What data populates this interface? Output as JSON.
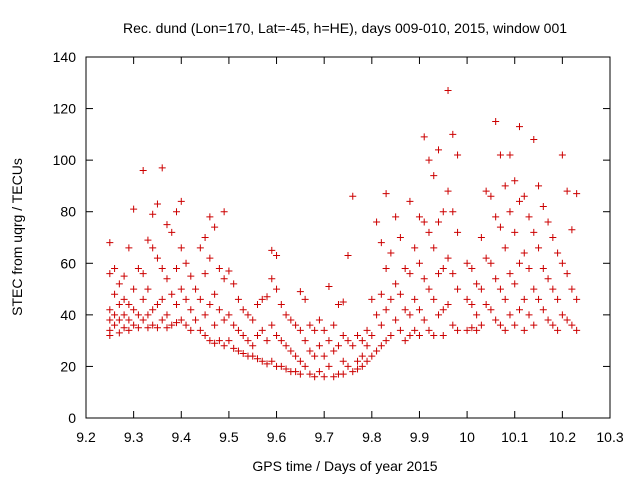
{
  "chart_data": {
    "type": "scatter",
    "title": "Rec. dund (Lon=170, Lat=-45, h=HE), days 009-010, 2015, window 001",
    "xlabel": "GPS time / Days of year 2015",
    "ylabel": "STEC from uqrg / TECUs",
    "xlim": [
      9.2,
      10.3
    ],
    "ylim": [
      0,
      140
    ],
    "xticks": [
      "9.2",
      "9.3",
      "9.4",
      "9.5",
      "9.6",
      "9.7",
      "9.8",
      "9.9",
      "10",
      "10.1",
      "10.2",
      "10.3"
    ],
    "yticks": [
      "0",
      "20",
      "40",
      "60",
      "80",
      "100",
      "120",
      "140"
    ],
    "grid": false,
    "marker": "+",
    "color": "#cc0000",
    "points": [
      [
        9.25,
        68
      ],
      [
        9.25,
        56
      ],
      [
        9.25,
        42
      ],
      [
        9.25,
        38
      ],
      [
        9.25,
        34
      ],
      [
        9.25,
        32
      ],
      [
        9.26,
        58
      ],
      [
        9.26,
        48
      ],
      [
        9.26,
        40
      ],
      [
        9.26,
        36
      ],
      [
        9.27,
        52
      ],
      [
        9.27,
        44
      ],
      [
        9.27,
        38
      ],
      [
        9.27,
        33
      ],
      [
        9.28,
        55
      ],
      [
        9.28,
        46
      ],
      [
        9.28,
        40
      ],
      [
        9.28,
        35
      ],
      [
        9.29,
        66
      ],
      [
        9.29,
        44
      ],
      [
        9.29,
        38
      ],
      [
        9.29,
        34
      ],
      [
        9.3,
        81
      ],
      [
        9.3,
        50
      ],
      [
        9.3,
        42
      ],
      [
        9.3,
        36
      ],
      [
        9.31,
        58
      ],
      [
        9.31,
        40
      ],
      [
        9.31,
        35
      ],
      [
        9.32,
        96
      ],
      [
        9.32,
        56
      ],
      [
        9.32,
        46
      ],
      [
        9.32,
        38
      ],
      [
        9.33,
        69
      ],
      [
        9.33,
        50
      ],
      [
        9.33,
        40
      ],
      [
        9.33,
        35
      ],
      [
        9.34,
        79
      ],
      [
        9.34,
        66
      ],
      [
        9.34,
        42
      ],
      [
        9.34,
        36
      ],
      [
        9.35,
        83
      ],
      [
        9.35,
        62
      ],
      [
        9.35,
        44
      ],
      [
        9.35,
        35
      ],
      [
        9.36,
        97
      ],
      [
        9.36,
        58
      ],
      [
        9.36,
        46
      ],
      [
        9.36,
        38
      ],
      [
        9.37,
        75
      ],
      [
        9.37,
        54
      ],
      [
        9.37,
        40
      ],
      [
        9.37,
        35
      ],
      [
        9.38,
        72
      ],
      [
        9.38,
        48
      ],
      [
        9.38,
        36
      ],
      [
        9.39,
        80
      ],
      [
        9.39,
        58
      ],
      [
        9.39,
        44
      ],
      [
        9.39,
        37
      ],
      [
        9.4,
        84
      ],
      [
        9.4,
        66
      ],
      [
        9.4,
        50
      ],
      [
        9.4,
        38
      ],
      [
        9.41,
        60
      ],
      [
        9.41,
        46
      ],
      [
        9.41,
        36
      ],
      [
        9.42,
        55
      ],
      [
        9.42,
        42
      ],
      [
        9.42,
        34
      ],
      [
        9.43,
        50
      ],
      [
        9.43,
        38
      ],
      [
        9.44,
        66
      ],
      [
        9.44,
        46
      ],
      [
        9.44,
        34
      ],
      [
        9.45,
        70
      ],
      [
        9.45,
        56
      ],
      [
        9.45,
        40
      ],
      [
        9.45,
        32
      ],
      [
        9.46,
        78
      ],
      [
        9.46,
        62
      ],
      [
        9.46,
        44
      ],
      [
        9.46,
        30
      ],
      [
        9.47,
        74
      ],
      [
        9.47,
        48
      ],
      [
        9.47,
        36
      ],
      [
        9.47,
        29
      ],
      [
        9.48,
        58
      ],
      [
        9.48,
        42
      ],
      [
        9.48,
        30
      ],
      [
        9.49,
        80
      ],
      [
        9.49,
        54
      ],
      [
        9.49,
        38
      ],
      [
        9.49,
        28
      ],
      [
        9.5,
        57
      ],
      [
        9.5,
        40
      ],
      [
        9.5,
        30
      ],
      [
        9.51,
        52
      ],
      [
        9.51,
        36
      ],
      [
        9.51,
        27
      ],
      [
        9.52,
        46
      ],
      [
        9.52,
        34
      ],
      [
        9.52,
        26
      ],
      [
        9.53,
        42
      ],
      [
        9.53,
        32
      ],
      [
        9.53,
        25
      ],
      [
        9.54,
        40
      ],
      [
        9.54,
        30
      ],
      [
        9.54,
        24
      ],
      [
        9.55,
        38
      ],
      [
        9.55,
        28
      ],
      [
        9.55,
        24
      ],
      [
        9.56,
        44
      ],
      [
        9.56,
        32
      ],
      [
        9.56,
        23
      ],
      [
        9.57,
        46
      ],
      [
        9.57,
        34
      ],
      [
        9.57,
        22
      ],
      [
        9.58,
        47
      ],
      [
        9.58,
        30
      ],
      [
        9.58,
        21
      ],
      [
        9.59,
        65
      ],
      [
        9.59,
        54
      ],
      [
        9.59,
        36
      ],
      [
        9.59,
        22
      ],
      [
        9.6,
        63
      ],
      [
        9.6,
        50
      ],
      [
        9.6,
        32
      ],
      [
        9.6,
        20
      ],
      [
        9.61,
        44
      ],
      [
        9.61,
        30
      ],
      [
        9.61,
        20
      ],
      [
        9.62,
        40
      ],
      [
        9.62,
        28
      ],
      [
        9.62,
        19
      ],
      [
        9.63,
        38
      ],
      [
        9.63,
        26
      ],
      [
        9.63,
        18
      ],
      [
        9.64,
        36
      ],
      [
        9.64,
        24
      ],
      [
        9.64,
        18
      ],
      [
        9.65,
        49
      ],
      [
        9.65,
        34
      ],
      [
        9.65,
        22
      ],
      [
        9.65,
        17
      ],
      [
        9.66,
        46
      ],
      [
        9.66,
        30
      ],
      [
        9.66,
        20
      ],
      [
        9.67,
        36
      ],
      [
        9.67,
        26
      ],
      [
        9.67,
        17
      ],
      [
        9.68,
        34
      ],
      [
        9.68,
        24
      ],
      [
        9.68,
        16
      ],
      [
        9.69,
        38
      ],
      [
        9.69,
        28
      ],
      [
        9.69,
        18
      ],
      [
        9.7,
        34
      ],
      [
        9.7,
        24
      ],
      [
        9.7,
        16
      ],
      [
        9.71,
        51
      ],
      [
        9.71,
        30
      ],
      [
        9.71,
        20
      ],
      [
        9.72,
        36
      ],
      [
        9.72,
        26
      ],
      [
        9.72,
        16
      ],
      [
        9.73,
        44
      ],
      [
        9.73,
        28
      ],
      [
        9.73,
        17
      ],
      [
        9.74,
        45
      ],
      [
        9.74,
        32
      ],
      [
        9.74,
        22
      ],
      [
        9.74,
        17
      ],
      [
        9.75,
        63
      ],
      [
        9.75,
        30
      ],
      [
        9.75,
        20
      ],
      [
        9.76,
        86
      ],
      [
        9.76,
        28
      ],
      [
        9.76,
        18
      ],
      [
        9.77,
        32
      ],
      [
        9.77,
        22
      ],
      [
        9.77,
        19
      ],
      [
        9.78,
        30
      ],
      [
        9.78,
        24
      ],
      [
        9.78,
        20
      ],
      [
        9.79,
        34
      ],
      [
        9.79,
        28
      ],
      [
        9.79,
        22
      ],
      [
        9.8,
        46
      ],
      [
        9.8,
        32
      ],
      [
        9.8,
        24
      ],
      [
        9.81,
        76
      ],
      [
        9.81,
        40
      ],
      [
        9.81,
        26
      ],
      [
        9.82,
        68
      ],
      [
        9.82,
        48
      ],
      [
        9.82,
        36
      ],
      [
        9.82,
        28
      ],
      [
        9.83,
        87
      ],
      [
        9.83,
        58
      ],
      [
        9.83,
        42
      ],
      [
        9.83,
        30
      ],
      [
        9.84,
        64
      ],
      [
        9.84,
        46
      ],
      [
        9.84,
        32
      ],
      [
        9.85,
        78
      ],
      [
        9.85,
        52
      ],
      [
        9.85,
        38
      ],
      [
        9.86,
        70
      ],
      [
        9.86,
        48
      ],
      [
        9.86,
        34
      ],
      [
        9.87,
        58
      ],
      [
        9.87,
        42
      ],
      [
        9.87,
        30
      ],
      [
        9.88,
        84
      ],
      [
        9.88,
        56
      ],
      [
        9.88,
        40
      ],
      [
        9.88,
        32
      ],
      [
        9.89,
        66
      ],
      [
        9.89,
        46
      ],
      [
        9.89,
        34
      ],
      [
        9.9,
        78
      ],
      [
        9.9,
        60
      ],
      [
        9.9,
        42
      ],
      [
        9.9,
        32
      ],
      [
        9.91,
        109
      ],
      [
        9.91,
        76
      ],
      [
        9.91,
        54
      ],
      [
        9.91,
        38
      ],
      [
        9.92,
        100
      ],
      [
        9.92,
        72
      ],
      [
        9.92,
        50
      ],
      [
        9.92,
        34
      ],
      [
        9.93,
        94
      ],
      [
        9.93,
        66
      ],
      [
        9.93,
        46
      ],
      [
        9.93,
        32
      ],
      [
        9.94,
        104
      ],
      [
        9.94,
        76
      ],
      [
        9.94,
        56
      ],
      [
        9.94,
        40
      ],
      [
        9.95,
        80
      ],
      [
        9.95,
        58
      ],
      [
        9.95,
        42
      ],
      [
        9.95,
        32
      ],
      [
        9.96,
        127
      ],
      [
        9.96,
        88
      ],
      [
        9.96,
        62
      ],
      [
        9.96,
        44
      ],
      [
        9.97,
        110
      ],
      [
        9.97,
        80
      ],
      [
        9.97,
        56
      ],
      [
        9.97,
        36
      ],
      [
        9.98,
        102
      ],
      [
        9.98,
        72
      ],
      [
        9.98,
        50
      ],
      [
        9.98,
        34
      ],
      [
        10.0,
        60
      ],
      [
        10.0,
        46
      ],
      [
        10.0,
        34
      ],
      [
        10.01,
        58
      ],
      [
        10.01,
        44
      ],
      [
        10.01,
        35
      ],
      [
        10.02,
        52
      ],
      [
        10.02,
        40
      ],
      [
        10.02,
        34
      ],
      [
        10.03,
        70
      ],
      [
        10.03,
        50
      ],
      [
        10.03,
        36
      ],
      [
        10.04,
        88
      ],
      [
        10.04,
        62
      ],
      [
        10.04,
        44
      ],
      [
        10.05,
        86
      ],
      [
        10.05,
        60
      ],
      [
        10.05,
        42
      ],
      [
        10.06,
        115
      ],
      [
        10.06,
        78
      ],
      [
        10.06,
        54
      ],
      [
        10.06,
        38
      ],
      [
        10.07,
        102
      ],
      [
        10.07,
        74
      ],
      [
        10.07,
        50
      ],
      [
        10.07,
        36
      ],
      [
        10.08,
        90
      ],
      [
        10.08,
        66
      ],
      [
        10.08,
        46
      ],
      [
        10.08,
        34
      ],
      [
        10.09,
        102
      ],
      [
        10.09,
        80
      ],
      [
        10.09,
        56
      ],
      [
        10.09,
        40
      ],
      [
        10.1,
        92
      ],
      [
        10.1,
        72
      ],
      [
        10.1,
        52
      ],
      [
        10.1,
        36
      ],
      [
        10.11,
        113
      ],
      [
        10.11,
        84
      ],
      [
        10.11,
        60
      ],
      [
        10.11,
        42
      ],
      [
        10.12,
        86
      ],
      [
        10.12,
        64
      ],
      [
        10.12,
        46
      ],
      [
        10.12,
        34
      ],
      [
        10.13,
        78
      ],
      [
        10.13,
        58
      ],
      [
        10.13,
        40
      ],
      [
        10.14,
        108
      ],
      [
        10.14,
        72
      ],
      [
        10.14,
        50
      ],
      [
        10.14,
        36
      ],
      [
        10.15,
        90
      ],
      [
        10.15,
        66
      ],
      [
        10.15,
        46
      ],
      [
        10.16,
        82
      ],
      [
        10.16,
        58
      ],
      [
        10.16,
        42
      ],
      [
        10.17,
        76
      ],
      [
        10.17,
        54
      ],
      [
        10.17,
        38
      ],
      [
        10.18,
        70
      ],
      [
        10.18,
        50
      ],
      [
        10.18,
        36
      ],
      [
        10.19,
        64
      ],
      [
        10.19,
        46
      ],
      [
        10.19,
        34
      ],
      [
        10.2,
        102
      ],
      [
        10.2,
        60
      ],
      [
        10.2,
        40
      ],
      [
        10.21,
        88
      ],
      [
        10.21,
        56
      ],
      [
        10.21,
        38
      ],
      [
        10.22,
        73
      ],
      [
        10.22,
        50
      ],
      [
        10.22,
        36
      ],
      [
        10.23,
        87
      ],
      [
        10.23,
        46
      ],
      [
        10.23,
        34
      ]
    ]
  }
}
